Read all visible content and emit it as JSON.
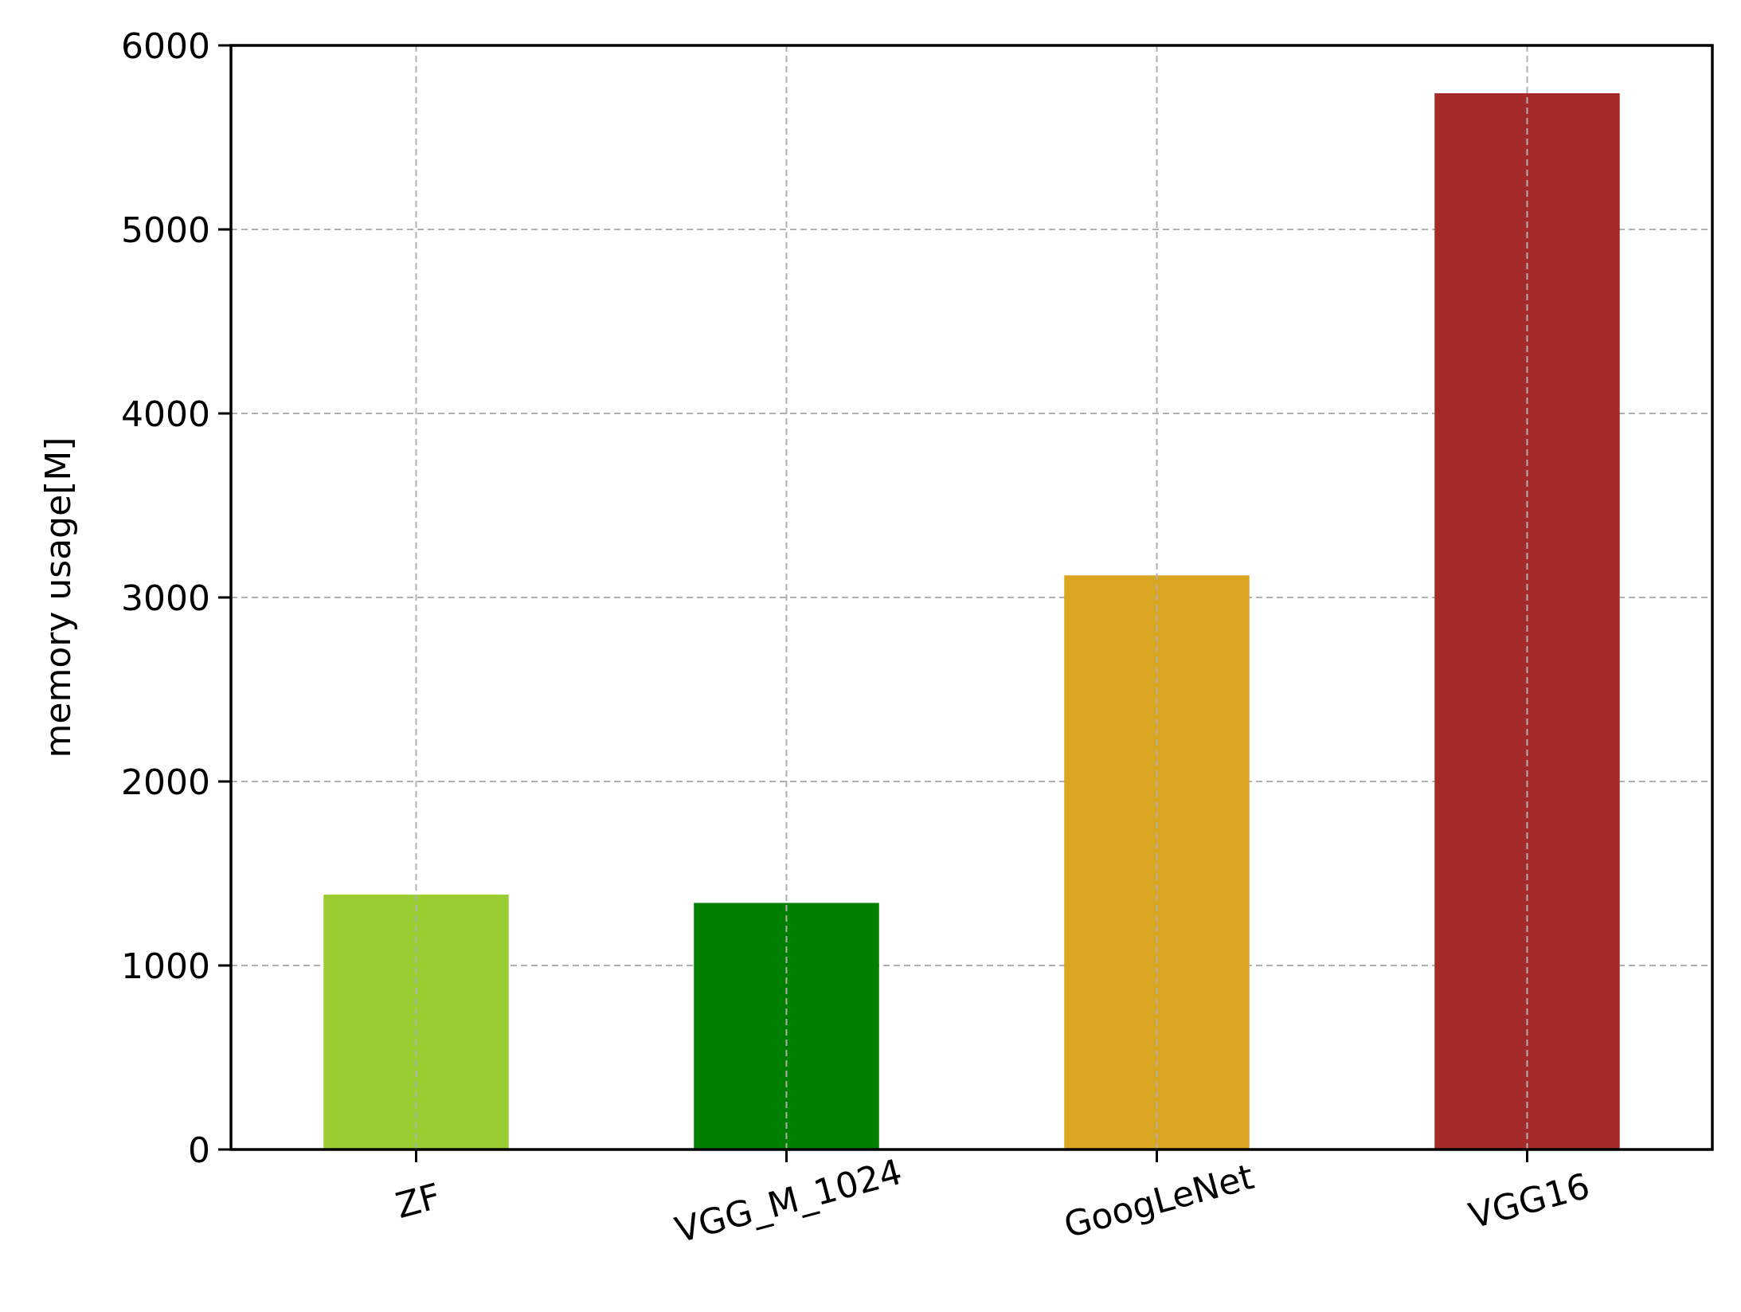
{
  "chart_data": {
    "type": "bar",
    "categories": [
      "ZF",
      "VGG_M_1024",
      "GoogLeNet",
      "VGG16"
    ],
    "values": [
      1385,
      1340,
      3120,
      5740
    ],
    "bar_colors": [
      "#9ACD32",
      "#008000",
      "#DAA520",
      "#A52A2A"
    ],
    "title": "",
    "xlabel": "",
    "ylabel": "memory usage[M]",
    "ylim": [
      0,
      6000
    ],
    "yticks": [
      0,
      1000,
      2000,
      3000,
      4000,
      5000,
      6000
    ],
    "ytick_labels": [
      "0",
      "1000",
      "2000",
      "3000",
      "4000",
      "5000",
      "6000"
    ],
    "xtick_rotation_deg": -15,
    "grid": true,
    "grid_style": "dashed",
    "legend": "none"
  }
}
